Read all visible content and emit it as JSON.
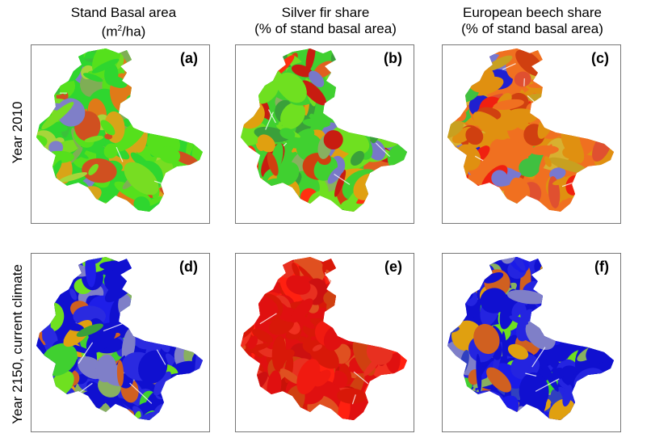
{
  "column_titles": [
    {
      "line1": "Stand Basal area",
      "line2_pre": "(m",
      "line2_sup": "2",
      "line2_post": "/ha)"
    },
    {
      "line1": "Silver fir share",
      "line2": "(% of stand basal area)"
    },
    {
      "line1": "European beech share",
      "line2": "(% of stand basal area)"
    }
  ],
  "row_labels": [
    "Year 2010",
    "Year 2150, current climate"
  ],
  "panels": [
    {
      "letter": "(a)",
      "palette": [
        "#2fd62f",
        "#55e01c",
        "#77dd22",
        "#7fae55",
        "#3ac23a",
        "#a6d63a",
        "#d8a418",
        "#e07a18",
        "#7f7fc8",
        "#d05020"
      ]
    },
    {
      "letter": "(b)",
      "palette": [
        "#40d030",
        "#6fe020",
        "#88b060",
        "#e0a010",
        "#d04010",
        "#7878c8",
        "#3aa03a",
        "#e06020",
        "#c81c10",
        "#ff3010"
      ]
    },
    {
      "letter": "(c)",
      "palette": [
        "#f07020",
        "#e09010",
        "#d04010",
        "#f02010",
        "#c8a020",
        "#7878d0",
        "#40c040",
        "#2020d0",
        "#e05030",
        "#d8b030"
      ]
    },
    {
      "letter": "(d)",
      "palette": [
        "#1010d0",
        "#2a2ae0",
        "#40d030",
        "#6fe020",
        "#7f7fc8",
        "#88b060",
        "#e0a010",
        "#d06020",
        "#3aa03a",
        "#1e1ee8"
      ]
    },
    {
      "letter": "(e)",
      "palette": [
        "#e01010",
        "#d81808",
        "#f01a10",
        "#c81208",
        "#e83020",
        "#ff2010",
        "#d04010",
        "#e05020",
        "#cc1010",
        "#f03020"
      ]
    },
    {
      "letter": "(f)",
      "palette": [
        "#1010d0",
        "#2424e0",
        "#40d030",
        "#7f7fc8",
        "#6fe020",
        "#88b060",
        "#e0a010",
        "#d06020",
        "#3040c0",
        "#1a1ae8"
      ]
    }
  ]
}
